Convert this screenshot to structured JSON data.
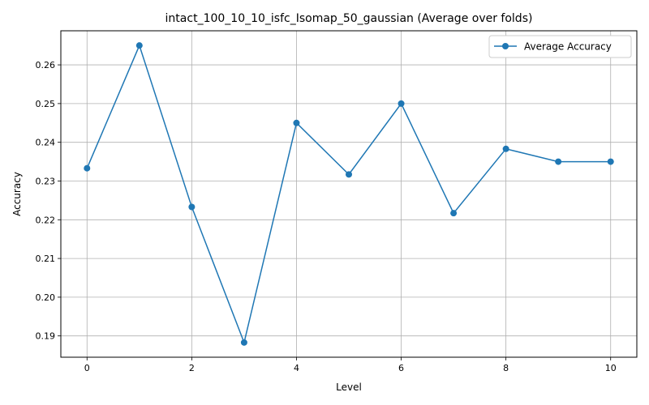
{
  "chart_data": {
    "type": "line",
    "title": "intact_100_10_10_isfc_Isomap_50_gaussian (Average over folds)",
    "xlabel": "Level",
    "ylabel": "Accuracy",
    "xlim": [
      -0.5,
      10.5
    ],
    "ylim": [
      0.1845,
      0.2688
    ],
    "xticks": [
      0,
      2,
      4,
      6,
      8,
      10
    ],
    "xtick_labels": [
      "0",
      "2",
      "4",
      "6",
      "8",
      "10"
    ],
    "yticks": [
      0.19,
      0.2,
      0.21,
      0.22,
      0.23,
      0.24,
      0.25,
      0.26
    ],
    "ytick_labels": [
      "0.19",
      "0.20",
      "0.21",
      "0.22",
      "0.23",
      "0.24",
      "0.25",
      "0.26"
    ],
    "grid": true,
    "legend_position": "top-right",
    "color": "#1f77b4",
    "series": [
      {
        "name": "Average Accuracy",
        "x": [
          0,
          1,
          2,
          3,
          4,
          5,
          6,
          7,
          8,
          9,
          10
        ],
        "values": [
          0.2333,
          0.265,
          0.2233,
          0.1883,
          0.245,
          0.2317,
          0.25,
          0.2217,
          0.2383,
          0.235,
          0.235
        ]
      }
    ]
  }
}
